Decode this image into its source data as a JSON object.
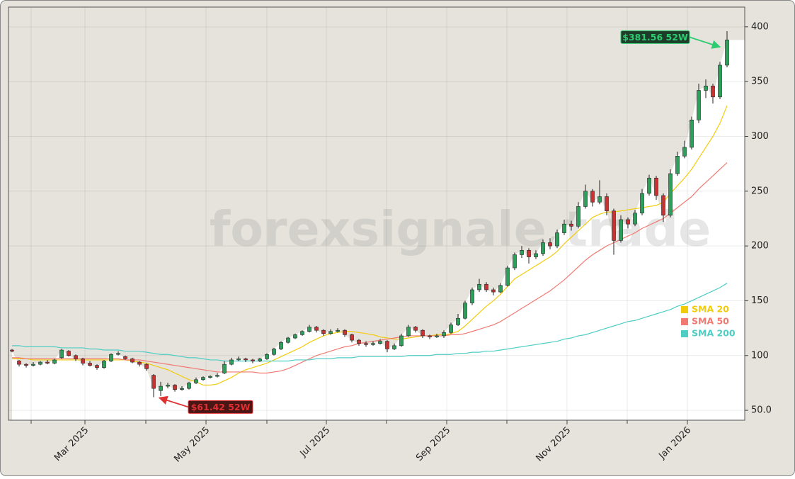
{
  "chart_data": {
    "type": "candlestick",
    "watermark": "forexsignale.trade",
    "xlim": [
      -0.5,
      103.5
    ],
    "xticks": [
      {
        "value": 10.3,
        "label": "Mar 2025"
      },
      {
        "value": 27.4,
        "label": "May 2025"
      },
      {
        "value": 44.4,
        "label": "Jul 2025"
      },
      {
        "value": 61.4,
        "label": "Sep 2025"
      },
      {
        "value": 78.4,
        "label": "Nov 2025"
      },
      {
        "value": 95.4,
        "label": "Jan 2026"
      }
    ],
    "xticks_minor": [
      2.7,
      18.9,
      36,
      52.9,
      69.9,
      86.9
    ],
    "ylim": [
      41,
      418
    ],
    "yticks": [
      {
        "value": 50,
        "label": "50.0"
      },
      100,
      150,
      200,
      250,
      300,
      350,
      400
    ],
    "grid": true,
    "up_color": "#2e9e5b",
    "down_color": "#c83232",
    "ohlc": [
      [
        105,
        106,
        103,
        104
      ],
      [
        95,
        96,
        90,
        92
      ],
      [
        92,
        93,
        89,
        91
      ],
      [
        91,
        94,
        90,
        92
      ],
      [
        92,
        95,
        91,
        94
      ],
      [
        94,
        96,
        92,
        93
      ],
      [
        93,
        97,
        92,
        96
      ],
      [
        98,
        106,
        97,
        105
      ],
      [
        104,
        105,
        99,
        100
      ],
      [
        100,
        101,
        95,
        97
      ],
      [
        97,
        98,
        91,
        93
      ],
      [
        93,
        95,
        90,
        91
      ],
      [
        91,
        92,
        87,
        89
      ],
      [
        89,
        96,
        88,
        95
      ],
      [
        95,
        102,
        94,
        101
      ],
      [
        101,
        104,
        100,
        102
      ],
      [
        99,
        100,
        96,
        97
      ],
      [
        97,
        98,
        93,
        94
      ],
      [
        94,
        95,
        90,
        92
      ],
      [
        92,
        93,
        86,
        88
      ],
      [
        82,
        83,
        62,
        70
      ],
      [
        68,
        76,
        63,
        72
      ],
      [
        72,
        75,
        70,
        73
      ],
      [
        73,
        74,
        67,
        69
      ],
      [
        69,
        72,
        68,
        70
      ],
      [
        70,
        76,
        69,
        75
      ],
      [
        75,
        80,
        74,
        78
      ],
      [
        78,
        81,
        77,
        80
      ],
      [
        80,
        82,
        79,
        81
      ],
      [
        81,
        84,
        80,
        82
      ],
      [
        84,
        95,
        83,
        92
      ],
      [
        92,
        98,
        91,
        96
      ],
      [
        96,
        99,
        95,
        97
      ],
      [
        97,
        98,
        94,
        96
      ],
      [
        96,
        97,
        93,
        95
      ],
      [
        95,
        98,
        94,
        97
      ],
      [
        97,
        102,
        96,
        101
      ],
      [
        101,
        107,
        100,
        106
      ],
      [
        106,
        113,
        105,
        112
      ],
      [
        112,
        117,
        111,
        116
      ],
      [
        116,
        120,
        115,
        119
      ],
      [
        119,
        123,
        118,
        122
      ],
      [
        122,
        128,
        121,
        126
      ],
      [
        126,
        127,
        121,
        123
      ],
      [
        123,
        124,
        118,
        120
      ],
      [
        120,
        124,
        119,
        122
      ],
      [
        122,
        125,
        121,
        123
      ],
      [
        123,
        124,
        117,
        119
      ],
      [
        119,
        120,
        112,
        114
      ],
      [
        114,
        115,
        109,
        111
      ],
      [
        111,
        113,
        108,
        110
      ],
      [
        110,
        113,
        109,
        111
      ],
      [
        111,
        115,
        110,
        113
      ],
      [
        113,
        114,
        103,
        106
      ],
      [
        106,
        111,
        105,
        109
      ],
      [
        109,
        120,
        108,
        118
      ],
      [
        118,
        128,
        117,
        126
      ],
      [
        126,
        127,
        121,
        123
      ],
      [
        123,
        124,
        116,
        118
      ],
      [
        118,
        119,
        115,
        117
      ],
      [
        117,
        120,
        116,
        118
      ],
      [
        118,
        123,
        116,
        121
      ],
      [
        121,
        130,
        120,
        128
      ],
      [
        128,
        138,
        127,
        134
      ],
      [
        134,
        150,
        133,
        148
      ],
      [
        148,
        162,
        146,
        160
      ],
      [
        160,
        170,
        158,
        165
      ],
      [
        165,
        167,
        158,
        160
      ],
      [
        160,
        162,
        155,
        158
      ],
      [
        158,
        166,
        157,
        164
      ],
      [
        164,
        182,
        163,
        180
      ],
      [
        180,
        194,
        178,
        192
      ],
      [
        192,
        200,
        189,
        196
      ],
      [
        196,
        198,
        184,
        190
      ],
      [
        190,
        196,
        188,
        193
      ],
      [
        193,
        206,
        191,
        203
      ],
      [
        203,
        207,
        197,
        200
      ],
      [
        200,
        215,
        198,
        212
      ],
      [
        212,
        224,
        210,
        220
      ],
      [
        220,
        223,
        214,
        218
      ],
      [
        218,
        240,
        216,
        236
      ],
      [
        236,
        256,
        234,
        250
      ],
      [
        250,
        252,
        236,
        240
      ],
      [
        240,
        260,
        238,
        245
      ],
      [
        245,
        248,
        228,
        232
      ],
      [
        232,
        234,
        192,
        205
      ],
      [
        205,
        228,
        203,
        224
      ],
      [
        224,
        226,
        216,
        220
      ],
      [
        220,
        233,
        218,
        230
      ],
      [
        230,
        252,
        228,
        248
      ],
      [
        248,
        265,
        246,
        262
      ],
      [
        262,
        264,
        242,
        246
      ],
      [
        246,
        248,
        222,
        228
      ],
      [
        228,
        270,
        226,
        266
      ],
      [
        266,
        286,
        264,
        282
      ],
      [
        282,
        296,
        280,
        290
      ],
      [
        290,
        318,
        288,
        315
      ],
      [
        315,
        348,
        312,
        342
      ],
      [
        342,
        352,
        335,
        346
      ],
      [
        346,
        348,
        330,
        336
      ],
      [
        336,
        368,
        334,
        365
      ],
      [
        365,
        396,
        363,
        388
      ]
    ],
    "series": [
      {
        "name": "SMA 20",
        "color": "#f2cc0c",
        "values": [
          97,
          97,
          97,
          96,
          96,
          96,
          96,
          96,
          96,
          96,
          96,
          96,
          96,
          96,
          96,
          96,
          96,
          95,
          94,
          93,
          91,
          89,
          87,
          84,
          81,
          78,
          76,
          73,
          73,
          74,
          77,
          80,
          84,
          87,
          89,
          91,
          93,
          96,
          99,
          102,
          105,
          108,
          112,
          115,
          118,
          120,
          121,
          122,
          122,
          121,
          120,
          119,
          117,
          116,
          115,
          115,
          116,
          117,
          118,
          118,
          119,
          119,
          120,
          122,
          127,
          133,
          139,
          145,
          150,
          156,
          163,
          170,
          174,
          178,
          182,
          186,
          190,
          195,
          202,
          208,
          214,
          220,
          226,
          229,
          231,
          231,
          232,
          233,
          234,
          235,
          236,
          237,
          240,
          248,
          255,
          262,
          270,
          280,
          290,
          300,
          312,
          328
        ]
      },
      {
        "name": "SMA 50",
        "color": "#f07a72",
        "values": [
          98,
          98,
          97,
          97,
          97,
          97,
          97,
          97,
          97,
          97,
          97,
          97,
          97,
          97,
          97,
          97,
          96,
          96,
          96,
          95,
          94,
          93,
          92,
          91,
          90,
          89,
          88,
          87,
          86,
          85,
          85,
          85,
          85,
          85,
          85,
          84,
          84,
          85,
          86,
          88,
          91,
          94,
          97,
          100,
          102,
          104,
          106,
          108,
          109,
          111,
          112,
          113,
          114,
          115,
          116,
          117,
          118,
          118,
          118,
          118,
          118,
          118,
          119,
          119,
          120,
          122,
          124,
          126,
          128,
          131,
          135,
          139,
          143,
          147,
          151,
          155,
          159,
          164,
          169,
          175,
          181,
          187,
          192,
          196,
          200,
          203,
          206,
          209,
          212,
          216,
          219,
          222,
          225,
          230,
          235,
          240,
          245,
          252,
          258,
          264,
          270,
          276
        ]
      },
      {
        "name": "SMA 200",
        "color": "#4ecdc4",
        "values": [
          109,
          109,
          108,
          108,
          108,
          108,
          108,
          107,
          107,
          107,
          107,
          106,
          106,
          105,
          105,
          105,
          104,
          104,
          104,
          103,
          102,
          101,
          101,
          100,
          99,
          98,
          98,
          97,
          96,
          96,
          95,
          95,
          95,
          95,
          95,
          95,
          95,
          95,
          95,
          95,
          96,
          96,
          96,
          97,
          97,
          97,
          98,
          98,
          98,
          99,
          99,
          99,
          99,
          99,
          99,
          99,
          100,
          100,
          100,
          100,
          101,
          101,
          101,
          102,
          102,
          103,
          103,
          104,
          104,
          105,
          106,
          107,
          108,
          109,
          110,
          111,
          112,
          113,
          115,
          116,
          118,
          119,
          121,
          123,
          125,
          127,
          129,
          131,
          132,
          134,
          136,
          138,
          140,
          142,
          145,
          147,
          150,
          153,
          156,
          159,
          162,
          166
        ]
      }
    ],
    "annotations": [
      {
        "text": "$381.56 52W",
        "value": 381.56,
        "x": 100,
        "color": "#2ecc71"
      },
      {
        "text": "$61.42 52W",
        "value": 61.42,
        "x": 20.8,
        "color": "#e03030"
      }
    ]
  }
}
